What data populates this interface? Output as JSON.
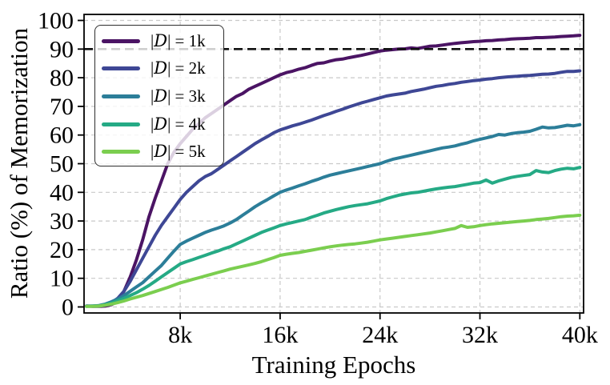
{
  "chart_data": {
    "type": "line",
    "title": "",
    "xlabel": "Training Epochs",
    "ylabel": "Ratio (%) of Memorization",
    "x_unit": "training epochs (k = thousands)",
    "xlim_k": [
      0.3,
      40.3
    ],
    "ylim": [
      -2.1,
      102.1
    ],
    "grid": true,
    "grid_color": "#c9c9c9",
    "frame_color": "#000000",
    "background_color": "#ffffff",
    "legend_position": "upper left",
    "threshold_line": {
      "y": 90,
      "color": "#111111",
      "style": "dashed"
    },
    "xticks": [
      {
        "v": 8,
        "label": "8k"
      },
      {
        "v": 16,
        "label": "16k"
      },
      {
        "v": 24,
        "label": "24k"
      },
      {
        "v": 32,
        "label": "32k"
      },
      {
        "v": 40,
        "label": "40k"
      }
    ],
    "yticks": [
      {
        "v": 0,
        "label": "0"
      },
      {
        "v": 10,
        "label": "10"
      },
      {
        "v": 20,
        "label": "20"
      },
      {
        "v": 30,
        "label": "30"
      },
      {
        "v": 40,
        "label": "40"
      },
      {
        "v": 50,
        "label": "50"
      },
      {
        "v": 60,
        "label": "60"
      },
      {
        "v": 70,
        "label": "70"
      },
      {
        "v": 80,
        "label": "80"
      },
      {
        "v": 90,
        "label": "90"
      },
      {
        "v": 100,
        "label": "100"
      }
    ],
    "x_start_k": 0.5,
    "x_step_k": 0.5,
    "series": [
      {
        "name": "|D| = 1k",
        "dataset_size": "1k",
        "color": "#4b1464",
        "legend": {
          "open": "|",
          "symbol": "D",
          "close": "| = ",
          "size": "1k"
        },
        "values": [
          0.3,
          0.2,
          0.2,
          0.3,
          0.8,
          2,
          5.5,
          10.5,
          16.5,
          23.5,
          31.5,
          38,
          44,
          50,
          54,
          57,
          59.5,
          62,
          64,
          66,
          67.5,
          69,
          70.5,
          72,
          73.5,
          74.5,
          76,
          77,
          78,
          79,
          80,
          81,
          81.8,
          82.3,
          83,
          83.5,
          84.3,
          85,
          85.2,
          85.8,
          86.3,
          86.5,
          87,
          87.4,
          87.8,
          88.3,
          88.8,
          89.3,
          89.6,
          89.8,
          90,
          90.1,
          90.4,
          90.2,
          90.6,
          91,
          91.1,
          91.4,
          91.7,
          92,
          92.2,
          92.4,
          92.6,
          92.7,
          92.9,
          93,
          93.2,
          93.3,
          93.5,
          93.6,
          93.7,
          93.8,
          94,
          94,
          94.1,
          94.2,
          94.4,
          94.5,
          94.6,
          94.8
        ]
      },
      {
        "name": "|D| = 2k",
        "dataset_size": "2k",
        "color": "#3e4795",
        "legend": {
          "open": "|",
          "symbol": "D",
          "close": "| = ",
          "size": "2k"
        },
        "values": [
          0.3,
          0.3,
          0.4,
          0.7,
          1.5,
          3,
          5.5,
          9,
          13,
          17,
          21,
          25,
          28.5,
          31.5,
          34.5,
          37.5,
          40,
          42,
          44,
          45.5,
          46.5,
          48,
          49.5,
          51,
          52.5,
          54,
          55.5,
          57,
          58.3,
          59.5,
          60.8,
          61.8,
          62.5,
          63.2,
          63.8,
          64.5,
          65.2,
          66,
          66.8,
          67.5,
          68.3,
          69,
          69.8,
          70.5,
          71.2,
          71.8,
          72.4,
          73,
          73.6,
          74,
          74.3,
          74.6,
          75.2,
          75.6,
          76,
          76.5,
          77,
          77.3,
          77.7,
          78,
          78.4,
          78.7,
          79,
          79.2,
          79.5,
          79.7,
          80,
          80.2,
          80.4,
          80.5,
          80.7,
          80.8,
          81,
          81.2,
          81.3,
          81.5,
          81.9,
          82.2,
          82.2,
          82.4
        ]
      },
      {
        "name": "|D| = 3k",
        "dataset_size": "3k",
        "color": "#2c7e99",
        "legend": {
          "open": "|",
          "symbol": "D",
          "close": "| = ",
          "size": "3k"
        },
        "values": [
          0.3,
          0.3,
          0.5,
          1,
          1.8,
          2.8,
          4,
          5.5,
          7,
          8.5,
          10.5,
          12.5,
          14.5,
          17,
          19.5,
          21.8,
          23,
          24,
          25,
          26,
          26.8,
          27.5,
          28.3,
          29.3,
          30.5,
          32,
          33.5,
          35,
          36.3,
          37.5,
          38.8,
          40,
          40.8,
          41.5,
          42.3,
          43,
          43.8,
          44.5,
          45.3,
          46,
          46.5,
          47,
          47.5,
          48,
          48.5,
          49,
          49.5,
          50,
          50.8,
          51.5,
          52,
          52.5,
          53,
          53.5,
          54,
          54.5,
          55,
          55.5,
          55.8,
          56.2,
          56.8,
          57.3,
          58,
          58.5,
          59,
          59.5,
          60.2,
          60,
          60.5,
          60.8,
          61,
          61.3,
          62,
          62.8,
          62.5,
          62.6,
          63,
          63.4,
          63.2,
          63.6
        ]
      },
      {
        "name": "|D| = 4k",
        "dataset_size": "4k",
        "color": "#25aa85",
        "legend": {
          "open": "|",
          "symbol": "D",
          "close": "| = ",
          "size": "4k"
        },
        "values": [
          0.2,
          0.3,
          0.4,
          0.8,
          1.4,
          2.2,
          3,
          4,
          5,
          6.2,
          7.5,
          9,
          10.5,
          12,
          13.5,
          15,
          15.8,
          16.5,
          17.3,
          18,
          18.8,
          19.5,
          20.3,
          21,
          22,
          23,
          24,
          25,
          26,
          26.8,
          27.6,
          28.4,
          29,
          29.5,
          30,
          30.5,
          31.3,
          32,
          32.8,
          33.4,
          34,
          34.5,
          35,
          35.4,
          35.7,
          36,
          36.5,
          37,
          37.8,
          38.4,
          39,
          39.4,
          39.8,
          40,
          40.4,
          40.8,
          41.2,
          41.5,
          41.8,
          42,
          42.4,
          42.8,
          43.2,
          43.4,
          44.3,
          43.2,
          44,
          44.6,
          45.2,
          45.6,
          45.9,
          46.2,
          47.6,
          47.1,
          46.9,
          47.6,
          48.1,
          48.4,
          48.2,
          48.7
        ]
      },
      {
        "name": "|D| = 5k",
        "dataset_size": "5k",
        "color": "#7bce4f",
        "legend": {
          "open": "|",
          "symbol": "D",
          "close": "| = ",
          "size": "5k"
        },
        "values": [
          0.2,
          0.2,
          0.3,
          0.6,
          1,
          1.5,
          2.1,
          2.8,
          3.4,
          4,
          4.7,
          5.4,
          6.1,
          6.8,
          7.6,
          8.4,
          9,
          9.6,
          10.2,
          10.8,
          11.4,
          12,
          12.6,
          13.2,
          13.7,
          14.2,
          14.7,
          15.2,
          15.8,
          16.5,
          17.2,
          18,
          18.4,
          18.7,
          19,
          19.4,
          19.8,
          20.2,
          20.6,
          21,
          21.3,
          21.6,
          21.8,
          22,
          22.3,
          22.6,
          23,
          23.4,
          23.7,
          24,
          24.3,
          24.6,
          24.9,
          25.2,
          25.5,
          25.8,
          26.2,
          26.6,
          27,
          27.4,
          28.4,
          27.8,
          28,
          28.4,
          28.7,
          29,
          29.2,
          29.4,
          29.6,
          29.8,
          30,
          30.2,
          30.5,
          30.7,
          30.9,
          31.2,
          31.5,
          31.7,
          31.8,
          32
        ]
      }
    ]
  }
}
